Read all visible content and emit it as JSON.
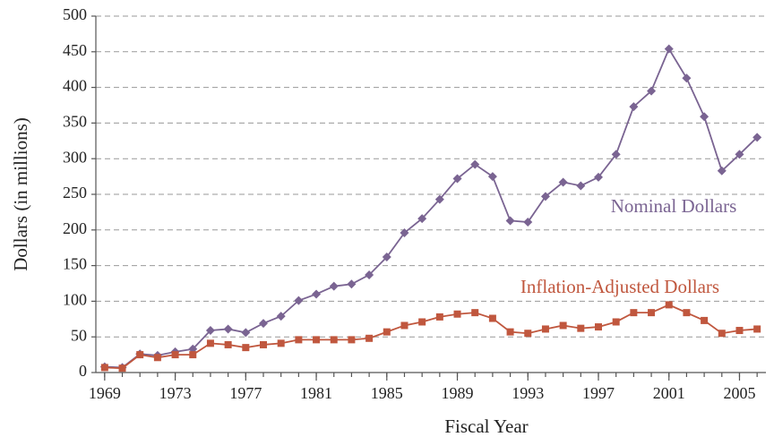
{
  "chart_data": {
    "type": "line",
    "xlabel": "Fiscal Year",
    "ylabel": "Dollars (in millions)",
    "x": [
      1969,
      1970,
      1971,
      1972,
      1973,
      1974,
      1975,
      1976,
      1977,
      1978,
      1979,
      1980,
      1981,
      1982,
      1983,
      1984,
      1985,
      1986,
      1987,
      1988,
      1989,
      1990,
      1991,
      1992,
      1993,
      1994,
      1995,
      1996,
      1997,
      1998,
      1999,
      2000,
      2001,
      2002,
      2003,
      2004,
      2005,
      2006
    ],
    "series": [
      {
        "name": "Nominal Dollars",
        "color": "#7a6492",
        "marker": "diamond",
        "values": [
          8,
          7,
          26,
          24,
          29,
          33,
          59,
          61,
          56,
          69,
          79,
          101,
          110,
          121,
          124,
          137,
          162,
          196,
          216,
          243,
          272,
          292,
          275,
          213,
          211,
          247,
          267,
          262,
          274,
          306,
          373,
          395,
          454,
          413,
          359,
          283,
          306,
          330
        ]
      },
      {
        "name": "Inflation-Adjusted Dollars",
        "color": "#c0573e",
        "marker": "square",
        "values": [
          7,
          6,
          25,
          21,
          25,
          25,
          41,
          39,
          35,
          39,
          41,
          46,
          46,
          46,
          46,
          48,
          57,
          66,
          71,
          78,
          82,
          84,
          76,
          57,
          55,
          61,
          66,
          62,
          64,
          71,
          84,
          84,
          95,
          84,
          73,
          55,
          59,
          61
        ]
      }
    ],
    "xlim": [
      1968.5,
      2006.5
    ],
    "xticks": [
      1969,
      1973,
      1977,
      1981,
      1985,
      1989,
      1993,
      1997,
      2001,
      2005
    ],
    "ylim": [
      0,
      500
    ],
    "yticks": [
      0,
      50,
      100,
      150,
      200,
      250,
      300,
      350,
      400,
      450,
      500
    ],
    "grid": true
  }
}
